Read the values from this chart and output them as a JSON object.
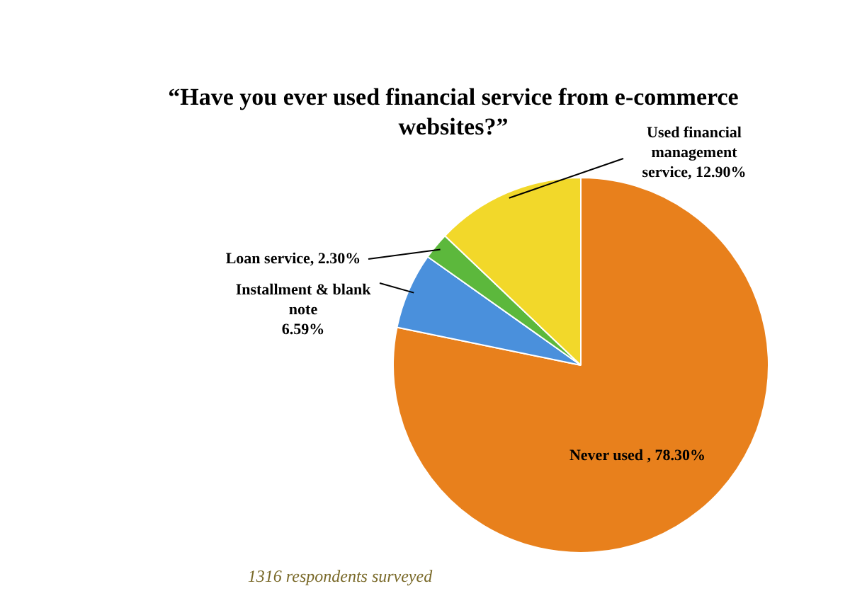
{
  "chart_data": {
    "type": "pie",
    "title": "“Have you ever used financial service from e-commerce websites?”",
    "categories": [
      "Never used ",
      "Installment & blank note",
      "Loan service",
      "Used financial management service"
    ],
    "values": [
      78.3,
      6.59,
      2.3,
      12.9
    ],
    "value_labels": [
      "78.30%",
      "6.59%",
      "2.30%",
      "12.90%"
    ],
    "colors": [
      "#e8801c",
      "#4a90dc",
      "#5cb83c",
      "#f2d82a"
    ],
    "legend": false,
    "annotations": [
      "1316 respondents surveyed"
    ]
  }
}
